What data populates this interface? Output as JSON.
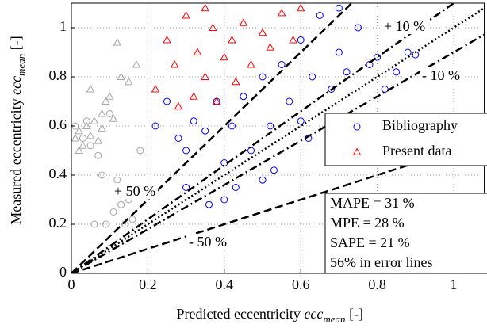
{
  "chart_data": {
    "type": "scatter",
    "x_label": {
      "text": "Predicted eccentricity ",
      "var": "ecc",
      "sub": "mean",
      "unit": " [-]"
    },
    "y_label": {
      "text": "Measured eccentricity ",
      "var": "ecc",
      "sub": "mean",
      "unit": " [-]"
    },
    "xlim": [
      0,
      1.08
    ],
    "ylim": [
      0,
      1.1
    ],
    "xticks": [
      0,
      0.2,
      0.4,
      0.6,
      0.8,
      1
    ],
    "yticks": [
      0,
      0.2,
      0.4,
      0.6,
      0.8,
      1
    ],
    "grid": true,
    "series": [
      {
        "color": "#a6a6a6",
        "marker": "triangle",
        "x": [
          0.01,
          0.02,
          0.03,
          0.04,
          0.05,
          0.06,
          0.07,
          0.08,
          0.09,
          0.1,
          0.12,
          0.13,
          0.15,
          0.17,
          0.02,
          0.05,
          0.08,
          0.11
        ],
        "values": [
          0.55,
          0.58,
          0.52,
          0.6,
          0.56,
          0.62,
          0.54,
          0.65,
          0.7,
          0.72,
          0.94,
          0.8,
          0.78,
          0.85,
          0.5,
          0.75,
          0.59,
          0.63
        ]
      },
      {
        "color": "#a6a6a6",
        "marker": "circle",
        "x": [
          0.01,
          0.03,
          0.05,
          0.07,
          0.09,
          0.11,
          0.13,
          0.15,
          0.1,
          0.12,
          0.08,
          0.14,
          0.16,
          0.04,
          0.06,
          0.18
        ],
        "values": [
          0.6,
          0.55,
          0.52,
          0.48,
          0.2,
          0.25,
          0.28,
          0.3,
          0.65,
          0.38,
          0.4,
          0.2,
          0.22,
          0.62,
          0.2,
          0.5
        ]
      },
      {
        "name": "Bibliography",
        "color": "#0000ff",
        "marker": "circle",
        "x": [
          0.22,
          0.25,
          0.28,
          0.3,
          0.32,
          0.35,
          0.36,
          0.38,
          0.4,
          0.42,
          0.43,
          0.45,
          0.47,
          0.5,
          0.52,
          0.53,
          0.55,
          0.57,
          0.6,
          0.62,
          0.63,
          0.65,
          0.68,
          0.7,
          0.72,
          0.75,
          0.78,
          0.8,
          0.82,
          0.85,
          0.88,
          0.9,
          0.3,
          0.4,
          0.5,
          0.6,
          0.7
        ],
        "values": [
          0.6,
          0.7,
          0.55,
          0.35,
          0.62,
          0.58,
          0.28,
          0.7,
          0.45,
          0.6,
          0.35,
          0.72,
          0.5,
          0.8,
          0.6,
          0.42,
          0.85,
          0.7,
          0.95,
          0.55,
          0.8,
          1.05,
          0.75,
          0.9,
          0.82,
          1.0,
          0.85,
          0.88,
          0.75,
          0.82,
          0.9,
          0.89,
          0.5,
          0.3,
          0.38,
          0.62,
          1.08
        ]
      },
      {
        "name": "Present data",
        "color": "#ff0000",
        "marker": "triangle",
        "x": [
          0.22,
          0.25,
          0.27,
          0.3,
          0.32,
          0.33,
          0.35,
          0.37,
          0.38,
          0.4,
          0.42,
          0.45,
          0.47,
          0.5,
          0.52,
          0.55,
          0.58,
          0.6,
          0.28,
          0.35,
          0.43
        ],
        "values": [
          0.75,
          0.95,
          0.85,
          1.05,
          0.72,
          0.9,
          0.8,
          1.0,
          0.7,
          0.88,
          0.95,
          1.02,
          0.85,
          0.98,
          0.92,
          1.06,
          0.95,
          1.08,
          0.68,
          1.08,
          0.78
        ]
      }
    ],
    "reference_lines": [
      {
        "slope": 1.5,
        "dash": "dashed",
        "label": "+ 50 %"
      },
      {
        "slope": 1.1,
        "dash": "dashdot",
        "label": "+ 10 %"
      },
      {
        "slope": 1,
        "dash": "dotted"
      },
      {
        "slope": 0.9,
        "dash": "dashdot",
        "label": "- 10 %"
      },
      {
        "slope": 0.5,
        "dash": "dashed",
        "label": "- 50 %"
      }
    ],
    "stats": [
      "MAPE = 31 %",
      "MPE = 28 %",
      "SAPE = 21 %",
      "56% in error lines"
    ]
  }
}
